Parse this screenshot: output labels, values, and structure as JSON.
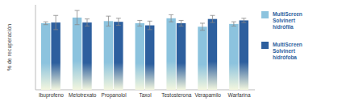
{
  "chart_data": {
    "type": "bar",
    "y_label": "% de recuperación",
    "categories": [
      "Ibuprofeno",
      "Metotrexato",
      "Propanolol",
      "Taxol",
      "Testosterona",
      "Verapamilo",
      "Warfarina"
    ],
    "series": [
      {
        "name": "MultiScreen Solvinert hidrófila",
        "color": "#8cc3de",
        "values": [
          94,
          102,
          97,
          94,
          101,
          89,
          93
        ],
        "errors": [
          2,
          10,
          7,
          4,
          5,
          5,
          3
        ]
      },
      {
        "name": "MultiScreen Solvinert hidrófoba",
        "color": "#2d5f9e",
        "values": [
          95,
          95,
          96,
          91,
          94,
          100,
          98
        ],
        "errors": [
          10,
          5,
          5,
          6,
          4,
          5,
          3
        ]
      }
    ],
    "ylim": [
      0,
      120
    ],
    "grid": false,
    "legend": "right",
    "tick_labels": "x"
  }
}
